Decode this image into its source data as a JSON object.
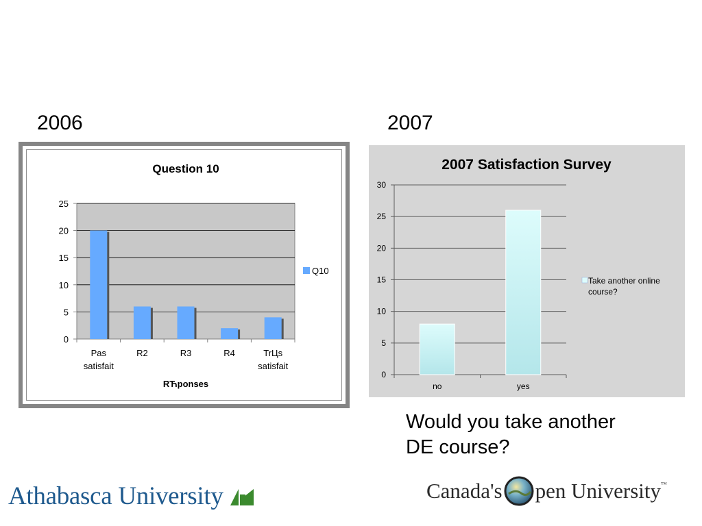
{
  "headings": {
    "left_year": "2006",
    "right_year": "2007"
  },
  "question": {
    "line1": "Would you take another",
    "line2": "DE course?"
  },
  "logos": {
    "athabasca": "Athabasca University",
    "cou_part1": "Canada's",
    "cou_part2": "pen University",
    "cou_tm": "™"
  },
  "chart_data": [
    {
      "type": "bar",
      "title": "Question 10",
      "xlabel": "RЋponses",
      "ylabel": "",
      "categories": [
        [
          "Pas",
          "satisfait"
        ],
        [
          "R2"
        ],
        [
          "R3"
        ],
        [
          "R4"
        ],
        [
          "TrЦs",
          "satisfait"
        ]
      ],
      "series": [
        {
          "name": "Q10",
          "values": [
            20,
            6,
            6,
            2,
            4
          ]
        }
      ],
      "ylim": [
        0,
        25
      ],
      "yticks": [
        0,
        5,
        10,
        15,
        20,
        25
      ],
      "grid": true,
      "legend": "right",
      "colors": {
        "bar": "#66aaff",
        "shadow": "#555555",
        "plot_bg": "#c8c8c8"
      }
    },
    {
      "type": "bar",
      "title": "2007 Satisfaction Survey",
      "xlabel": "",
      "ylabel": "",
      "categories": [
        "no",
        "yes"
      ],
      "series": [
        {
          "name": "Take another online course?",
          "values": [
            8,
            26
          ]
        }
      ],
      "ylim": [
        0,
        30
      ],
      "yticks": [
        0,
        5,
        10,
        15,
        20,
        25,
        30
      ],
      "grid": true,
      "legend": "right",
      "colors": {
        "bar_top": "#ddfcfc",
        "bar_bottom": "#b4e6ea",
        "plot_bg": "#d6d6d6"
      }
    }
  ]
}
